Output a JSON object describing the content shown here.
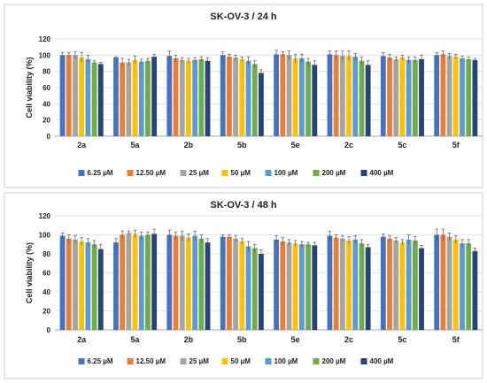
{
  "colors": {
    "6.25 µM": "#4472c4",
    "12.50 µM": "#ed7d31",
    "25 µM": "#a5a5a5",
    "50 µM": "#ffc000",
    "100 µM": "#5b9bd5",
    "200 µM": "#70ad47",
    "400 µM": "#264478"
  },
  "chart_data": [
    {
      "type": "bar",
      "title": "SK-OV-3 / 24 h",
      "xlabel": "",
      "ylabel": "Cell viability (%)",
      "ylim": [
        0,
        120
      ],
      "yticks": [
        0,
        20,
        40,
        60,
        80,
        100,
        120
      ],
      "grid": true,
      "legend": "bottom",
      "categories": [
        "2a",
        "5a",
        "2b",
        "5b",
        "5e",
        "2c",
        "5c",
        "5f"
      ],
      "series": [
        {
          "name": "6.25 µM",
          "values": [
            100,
            97,
            99,
            100,
            101,
            101,
            99,
            100
          ],
          "errors": [
            3,
            1,
            6,
            4,
            5,
            4,
            4,
            3
          ]
        },
        {
          "name": "12.50 µM",
          "values": [
            100,
            91,
            96,
            98,
            101,
            100,
            97,
            101
          ],
          "errors": [
            3,
            5,
            4,
            3,
            3,
            5,
            4,
            4
          ]
        },
        {
          "name": "25 µM",
          "values": [
            100,
            91,
            94,
            97,
            100,
            99,
            95,
            99
          ],
          "errors": [
            4,
            4,
            3,
            3,
            5,
            6,
            3,
            3
          ]
        },
        {
          "name": "50 µM",
          "values": [
            97,
            94,
            93,
            95,
            96,
            99,
            97,
            98
          ],
          "errors": [
            6,
            5,
            3,
            3,
            5,
            6,
            3,
            3
          ]
        },
        {
          "name": "100 µM",
          "values": [
            95,
            92,
            94,
            93,
            96,
            98,
            94,
            96
          ],
          "errors": [
            5,
            3,
            3,
            5,
            5,
            4,
            4,
            3
          ]
        },
        {
          "name": "200 µM",
          "values": [
            91,
            93,
            95,
            89,
            92,
            93,
            94,
            95
          ],
          "errors": [
            2,
            3,
            3,
            4,
            4,
            5,
            4,
            3
          ]
        },
        {
          "name": "400 µM",
          "values": [
            89,
            98,
            93,
            78,
            88,
            88,
            95,
            94
          ],
          "errors": [
            2,
            3,
            4,
            4,
            5,
            5,
            5,
            2
          ]
        }
      ]
    },
    {
      "type": "bar",
      "title": "SK-OV-3 / 48 h",
      "xlabel": "",
      "ylabel": "Cell viability (%)",
      "ylim": [
        0,
        120
      ],
      "yticks": [
        0,
        20,
        40,
        60,
        80,
        100,
        120
      ],
      "grid": true,
      "legend": "bottom",
      "categories": [
        "2a",
        "5a",
        "2b",
        "5b",
        "5e",
        "2c",
        "5c",
        "5f"
      ],
      "series": [
        {
          "name": "6.25 µM",
          "values": [
            99,
            92,
            100,
            98,
            95,
            99,
            98,
            100
          ],
          "errors": [
            3,
            4,
            5,
            2,
            4,
            5,
            3,
            6
          ]
        },
        {
          "name": "12.50 µM",
          "values": [
            96,
            100,
            99,
            98,
            93,
            97,
            96,
            100
          ],
          "errors": [
            4,
            4,
            4,
            2,
            4,
            3,
            3,
            6
          ]
        },
        {
          "name": "25 µM",
          "values": [
            95,
            102,
            99,
            96,
            92,
            96,
            94,
            98
          ],
          "errors": [
            4,
            2,
            5,
            3,
            3,
            3,
            3,
            4
          ]
        },
        {
          "name": "50 µM",
          "values": [
            93,
            101,
            97,
            93,
            91,
            94,
            92,
            95
          ],
          "errors": [
            4,
            4,
            4,
            3,
            3,
            4,
            3,
            4
          ]
        },
        {
          "name": "100 µM",
          "values": [
            92,
            99,
            99,
            88,
            90,
            95,
            95,
            91
          ],
          "errors": [
            4,
            4,
            5,
            5,
            3,
            4,
            5,
            4
          ]
        },
        {
          "name": "200 µM",
          "values": [
            90,
            100,
            96,
            86,
            90,
            91,
            94,
            91
          ],
          "errors": [
            4,
            3,
            4,
            4,
            2,
            4,
            4,
            4
          ]
        },
        {
          "name": "400 µM",
          "values": [
            85,
            101,
            92,
            80,
            89,
            87,
            86,
            83
          ],
          "errors": [
            5,
            5,
            4,
            4,
            3,
            3,
            3,
            3
          ]
        }
      ]
    }
  ]
}
